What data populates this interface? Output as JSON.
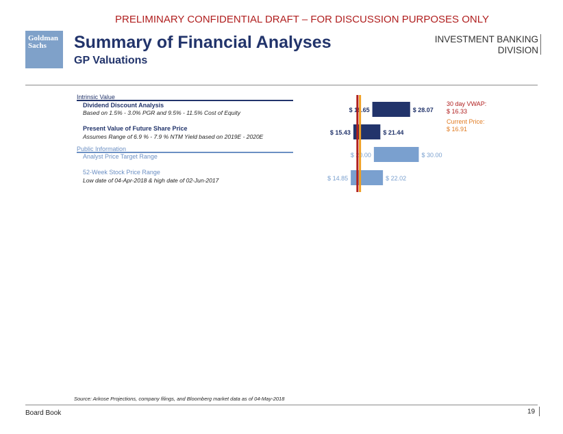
{
  "header": {
    "draft_banner": "PRELIMINARY CONFIDENTIAL DRAFT – FOR DISCUSSION PURPOSES ONLY",
    "logo_line1": "Goldman",
    "logo_line2": "Sachs",
    "title": "Summary of Financial Analyses",
    "subtitle": "GP Valuations",
    "division_line1": "INVESTMENT BANKING",
    "division_line2": "DIVISION"
  },
  "sections": [
    {
      "label": "Intrinsic Value",
      "rows": [
        {
          "title": "Dividend Discount Analysis",
          "note": "Based on 1.5% - 3.0% PGR and 9.5% - 11.5% Cost of Equity"
        },
        {
          "title": "Present Value of Future Share Price",
          "note": "Assumes Range of 6.9 % -  7.9 % NTM Yield based on 2019E - 2020E"
        }
      ]
    },
    {
      "label": "Public Information",
      "rows": [
        {
          "title": "Analyst Price Target Range",
          "note": ""
        },
        {
          "title": "52-Week Stock Price Range",
          "note": "Low date of 04-Apr-2018 & high date of 02-Jun-2017"
        }
      ]
    }
  ],
  "chart_data": {
    "type": "bar",
    "orientation": "horizontal-range",
    "categories": [
      "Dividend Discount Analysis",
      "Present Value of Future Share Price",
      "Analyst Price Target Range",
      "52-Week Stock Price Range"
    ],
    "series": [
      {
        "low": 19.65,
        "high": 28.07,
        "low_label": "$ 19.65",
        "high_label": "$ 28.07",
        "color": "#22346b"
      },
      {
        "low": 15.43,
        "high": 21.44,
        "low_label": "$ 15.43",
        "high_label": "$ 21.44",
        "color": "#22346b"
      },
      {
        "low": 20.0,
        "high": 30.0,
        "low_label": "$ 20.00",
        "high_label": "$ 30.00",
        "color": "#7aa0cf"
      },
      {
        "low": 14.85,
        "high": 22.02,
        "low_label": "$ 14.85",
        "high_label": "$ 22.02",
        "color": "#7aa0cf"
      }
    ],
    "reference_lines": [
      {
        "label_line1": "30 day VWAP:",
        "label_line2": "$ 16.33",
        "value": 16.33,
        "color": "#b01e1e"
      },
      {
        "label_line1": "Current Price:",
        "label_line2": "$ 16.91",
        "value": 16.91,
        "color": "#f0a020"
      }
    ],
    "xlim": [
      13,
      31
    ],
    "grid": false
  },
  "footer": {
    "source": "Source: Arkose Projections, company filings, and Bloomberg market data as of 04-May-2018",
    "left": "Board Book",
    "page": "19"
  }
}
